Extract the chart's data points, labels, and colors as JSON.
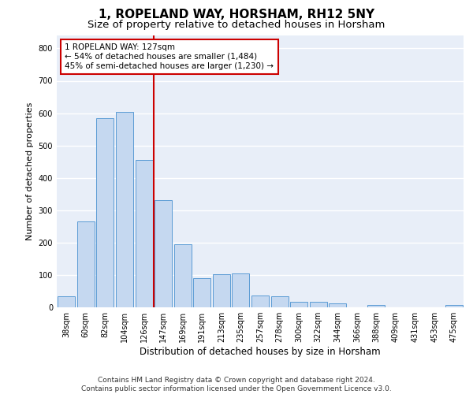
{
  "title": "1, ROPELAND WAY, HORSHAM, RH12 5NY",
  "subtitle": "Size of property relative to detached houses in Horsham",
  "xlabel": "Distribution of detached houses by size in Horsham",
  "ylabel": "Number of detached properties",
  "categories": [
    "38sqm",
    "60sqm",
    "82sqm",
    "104sqm",
    "126sqm",
    "147sqm",
    "169sqm",
    "191sqm",
    "213sqm",
    "235sqm",
    "257sqm",
    "278sqm",
    "300sqm",
    "322sqm",
    "344sqm",
    "366sqm",
    "388sqm",
    "409sqm",
    "431sqm",
    "453sqm",
    "475sqm"
  ],
  "values": [
    35,
    265,
    585,
    605,
    455,
    330,
    195,
    90,
    103,
    105,
    37,
    35,
    17,
    17,
    11,
    0,
    7,
    0,
    0,
    0,
    7
  ],
  "bar_color": "#c5d8f0",
  "bar_edge_color": "#5b9bd5",
  "vline_color": "#cc0000",
  "vline_x": 4.5,
  "annotation_text": "1 ROPELAND WAY: 127sqm\n← 54% of detached houses are smaller (1,484)\n45% of semi-detached houses are larger (1,230) →",
  "annotation_box_color": "#ffffff",
  "annotation_box_edge": "#cc0000",
  "ylim": [
    0,
    840
  ],
  "yticks": [
    0,
    100,
    200,
    300,
    400,
    500,
    600,
    700,
    800
  ],
  "background_color": "#e8eef8",
  "footer_line1": "Contains HM Land Registry data © Crown copyright and database right 2024.",
  "footer_line2": "Contains public sector information licensed under the Open Government Licence v3.0.",
  "title_fontsize": 11,
  "subtitle_fontsize": 9.5,
  "xlabel_fontsize": 8.5,
  "ylabel_fontsize": 8,
  "tick_fontsize": 7,
  "annotation_fontsize": 7.5,
  "footer_fontsize": 6.5
}
